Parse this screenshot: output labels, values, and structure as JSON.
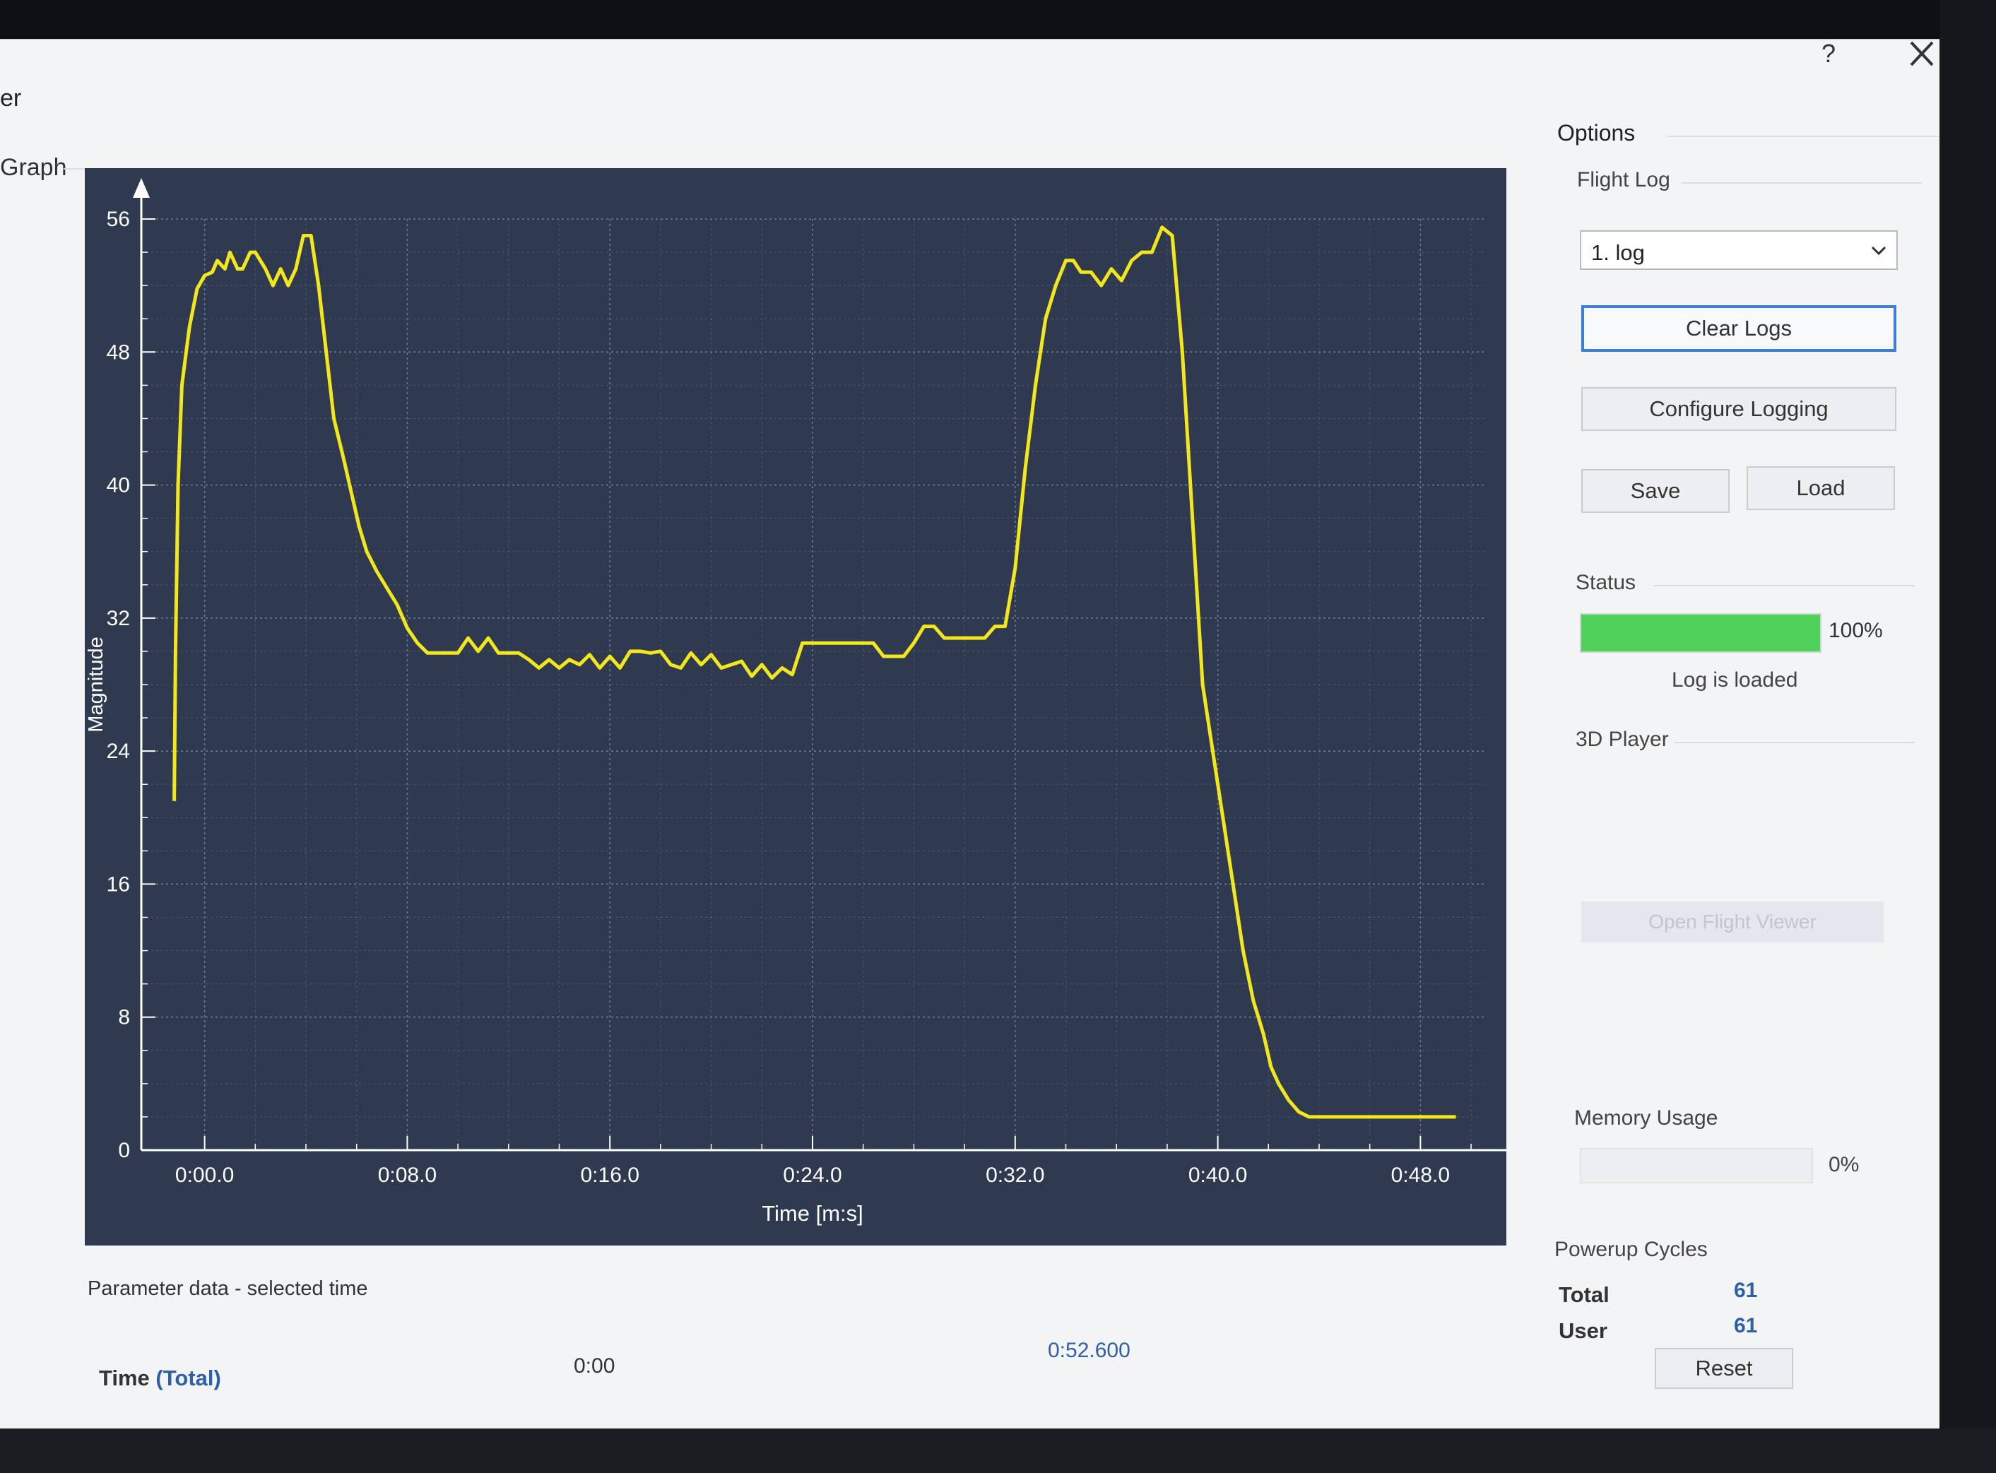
{
  "window": {
    "title_fragment": "er",
    "help_glyph": "?",
    "close_icon": "close-icon"
  },
  "graph": {
    "group_label": "Graph"
  },
  "options": {
    "title": "Options",
    "flight_log": {
      "label": "Flight Log",
      "selected": "1. log",
      "clear_logs": "Clear Logs",
      "configure_logging": "Configure Logging",
      "save": "Save",
      "load": "Load"
    },
    "status": {
      "label": "Status",
      "progress_percent": 100,
      "percent_text": "100%",
      "message": "Log is loaded"
    },
    "player": {
      "label": "3D Player",
      "open_viewer": "Open Flight Viewer"
    },
    "memory": {
      "label": "Memory Usage",
      "percent": 0,
      "percent_text": "0%"
    },
    "powerup": {
      "label": "Powerup Cycles",
      "total_label": "Total",
      "total_value": "61",
      "user_label": "User",
      "user_value": "61",
      "reset": "Reset"
    }
  },
  "parameter": {
    "label": "Parameter data - selected time",
    "time_label": "Time",
    "time_mode": "(Total)",
    "start": "0:00",
    "end": "0:52.600"
  },
  "colors": {
    "line": "#f2e61c",
    "plot_bg": "#2f3950",
    "accent": "#3f7ed8",
    "progress": "#50d15a"
  },
  "chart_data": {
    "type": "line",
    "ylabel": "Magnitude",
    "xlabel": "Time [m:s]",
    "ylim": [
      0,
      56
    ],
    "xlim": [
      -2.5,
      50.5
    ],
    "grid": true,
    "y_ticks": [
      "0",
      "8",
      "16",
      "24",
      "32",
      "40",
      "48",
      "56"
    ],
    "x_ticks": [
      "0:00.0",
      "0:08.0",
      "0:16.0",
      "0:24.0",
      "0:32.0",
      "0:40.0",
      "0:48.0"
    ],
    "series": [
      {
        "x": [
          -1.2,
          -1.15,
          -1.05,
          -0.9,
          -0.6,
          -0.3,
          0.0,
          0.3,
          0.5,
          0.8,
          1.0,
          1.3,
          1.5,
          1.8,
          2.0,
          2.4,
          2.7,
          3.0,
          3.3,
          3.6,
          3.9,
          4.2,
          4.5,
          4.8,
          5.1,
          5.5,
          5.8,
          6.1,
          6.4,
          6.8,
          7.2,
          7.6,
          8.0,
          8.4,
          8.8,
          9.2,
          9.6,
          10.0,
          10.4,
          10.8,
          11.2,
          11.6,
          12.0,
          12.4,
          12.8,
          13.2,
          13.6,
          14.0,
          14.4,
          14.8,
          15.2,
          15.6,
          16.0,
          16.4,
          16.8,
          17.2,
          17.6,
          18.0,
          18.4,
          18.8,
          19.2,
          19.6,
          20.0,
          20.4,
          20.8,
          21.2,
          21.6,
          22.0,
          22.4,
          22.8,
          23.2,
          23.6,
          24.0,
          24.4,
          24.8,
          25.2,
          25.6,
          26.0,
          26.4,
          26.8,
          27.2,
          27.6,
          28.0,
          28.4,
          28.8,
          29.2,
          29.6,
          30.0,
          30.4,
          30.8,
          31.2,
          31.6,
          32.0,
          32.4,
          32.8,
          33.2,
          33.6,
          34.0,
          34.3,
          34.6,
          35.0,
          35.4,
          35.8,
          36.2,
          36.6,
          37.0,
          37.4,
          37.8,
          38.2,
          38.6,
          39.0,
          39.4,
          39.8,
          40.2,
          40.6,
          41.0,
          41.4,
          41.8,
          42.1,
          42.4,
          42.8,
          43.2,
          43.6,
          44.0,
          44.4,
          44.8,
          45.2,
          45.6,
          46.0,
          46.4,
          46.8,
          47.2,
          47.6,
          48.0,
          48.4,
          48.8,
          49.2,
          49.4
        ],
        "y": [
          21.0,
          30.0,
          40.0,
          46.0,
          49.5,
          51.8,
          52.6,
          52.8,
          53.5,
          53.0,
          54.0,
          53.0,
          53.0,
          54.0,
          54.0,
          53.0,
          52.0,
          53.0,
          52.0,
          53.0,
          55.0,
          55.0,
          52.0,
          48.0,
          44.0,
          41.5,
          39.5,
          37.5,
          36.0,
          34.8,
          33.8,
          32.8,
          31.4,
          30.5,
          29.9,
          29.9,
          29.9,
          29.9,
          30.8,
          30.0,
          30.8,
          29.9,
          29.9,
          29.9,
          29.5,
          29.0,
          29.5,
          29.0,
          29.5,
          29.2,
          29.8,
          29.0,
          29.7,
          29.0,
          30.0,
          30.0,
          29.9,
          30.0,
          29.2,
          29.0,
          29.9,
          29.2,
          29.8,
          29.0,
          29.2,
          29.4,
          28.5,
          29.2,
          28.4,
          29.0,
          28.6,
          30.5,
          30.5,
          30.5,
          30.5,
          30.5,
          30.5,
          30.5,
          30.5,
          29.7,
          29.7,
          29.7,
          30.5,
          31.5,
          31.5,
          30.8,
          30.8,
          30.8,
          30.8,
          30.8,
          31.5,
          31.5,
          35.0,
          41.0,
          46.0,
          50.0,
          52.0,
          53.5,
          53.5,
          52.8,
          52.8,
          52.0,
          53.0,
          52.3,
          53.5,
          54.0,
          54.0,
          55.5,
          55.0,
          48.0,
          38.0,
          28.0,
          24.0,
          20.0,
          16.0,
          12.0,
          9.0,
          7.0,
          5.0,
          4.0,
          3.0,
          2.3,
          2.0,
          2.0,
          2.0,
          2.0,
          2.0,
          2.0,
          2.0,
          2.0,
          2.0,
          2.0,
          2.0,
          2.0,
          2.0,
          2.0,
          2.0,
          2.0
        ]
      }
    ]
  }
}
